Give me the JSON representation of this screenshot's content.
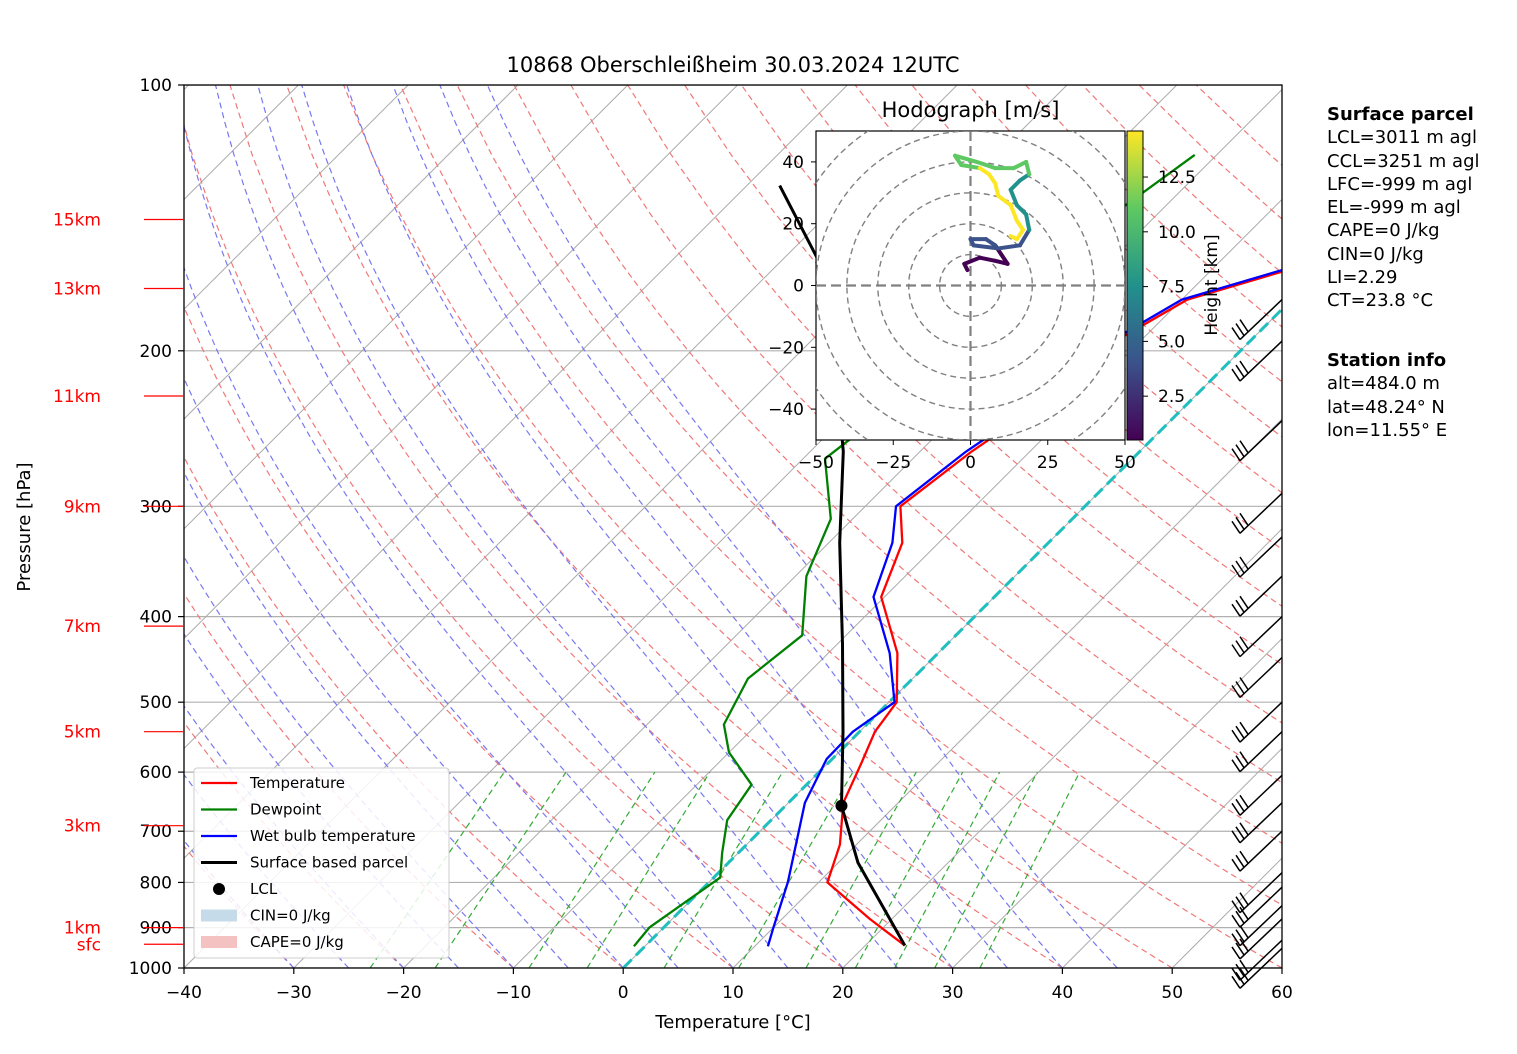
{
  "title": "10868 Oberschleißheim 30.03.2024 12UTC",
  "chart_data": {
    "type": "line",
    "subtype": "skew-T log-p diagram with hodograph inset",
    "xlabel": "Temperature [°C]",
    "ylabel": "Pressure [hPa]",
    "xlim": [
      -40,
      60
    ],
    "ylim": [
      1000,
      100
    ],
    "y_scale": "log",
    "grid": true,
    "x_ticks": [
      -40,
      -30,
      -20,
      -10,
      0,
      10,
      20,
      30,
      40,
      50,
      60
    ],
    "y_ticks": [
      100,
      200,
      300,
      400,
      500,
      600,
      700,
      800,
      900,
      1000
    ],
    "height_labels": [
      {
        "label": "sfc",
        "p": 940
      },
      {
        "label": "1km",
        "p": 900
      },
      {
        "label": "3km",
        "p": 690
      },
      {
        "label": "5km",
        "p": 540
      },
      {
        "label": "7km",
        "p": 410
      },
      {
        "label": "9km",
        "p": 300
      },
      {
        "label": "11km",
        "p": 225
      },
      {
        "label": "13km",
        "p": 170
      },
      {
        "label": "15km",
        "p": 142
      }
    ],
    "series": [
      {
        "name": "Temperature",
        "color": "#ff0000",
        "points": [
          [
            23.6,
            943
          ],
          [
            18,
            880
          ],
          [
            10.8,
            800
          ],
          [
            8.5,
            725
          ],
          [
            5,
            650
          ],
          [
            3,
            585
          ],
          [
            1.4,
            540
          ],
          [
            0.7,
            500
          ],
          [
            -3.7,
            440
          ],
          [
            -10.3,
            380
          ],
          [
            -13.3,
            330
          ],
          [
            -16.8,
            300
          ],
          [
            -15.3,
            260
          ],
          [
            -13,
            225
          ],
          [
            -13.3,
            203
          ],
          [
            -9.5,
            175
          ],
          [
            -2,
            160
          ],
          [
            1,
            152
          ],
          [
            5,
            148
          ],
          [
            4,
            138
          ],
          [
            3.5,
            132
          ],
          [
            -0.5,
            125
          ],
          [
            -5.5,
            118
          ]
        ]
      },
      {
        "name": "Dewpoint",
        "color": "#008000",
        "points": [
          [
            -1,
            945
          ],
          [
            -1.3,
            900
          ],
          [
            -0.3,
            840
          ],
          [
            0.6,
            790
          ],
          [
            -1.5,
            740
          ],
          [
            -4,
            680
          ],
          [
            -5,
            620
          ],
          [
            -10,
            570
          ],
          [
            -13,
            530
          ],
          [
            -15,
            470
          ],
          [
            -14,
            420
          ],
          [
            -19,
            360
          ],
          [
            -22,
            310
          ],
          [
            -28,
            265
          ],
          [
            -27,
            240
          ],
          [
            -25,
            220
          ],
          [
            -29,
            190
          ],
          [
            -30,
            170
          ],
          [
            -26,
            160
          ],
          [
            -24,
            140
          ],
          [
            -22,
            120
          ]
        ]
      },
      {
        "name": "Wet bulb temperature",
        "color": "#0000ff",
        "points": [
          [
            11.2,
            945
          ],
          [
            10,
            900
          ],
          [
            7.2,
            800
          ],
          [
            4.5,
            725
          ],
          [
            1.5,
            650
          ],
          [
            -0.5,
            580
          ],
          [
            -0.6,
            540
          ],
          [
            0.5,
            500
          ],
          [
            -4.4,
            440
          ],
          [
            -11,
            380
          ],
          [
            -14.2,
            330
          ],
          [
            -17.2,
            300
          ],
          [
            -15.8,
            260
          ],
          [
            -13.4,
            225
          ],
          [
            -13.7,
            203
          ],
          [
            -10,
            175
          ],
          [
            -2.5,
            160
          ],
          [
            0.5,
            152
          ],
          [
            4.6,
            148
          ],
          [
            4,
            138
          ],
          [
            3,
            132
          ],
          [
            -1,
            125
          ],
          [
            -5.5,
            118
          ]
        ]
      },
      {
        "name": "Surface based parcel",
        "color": "#000000",
        "points": [
          [
            23.6,
            943
          ],
          [
            11.8,
            760
          ],
          [
            5.1,
            655
          ],
          [
            -1.5,
            540
          ],
          [
            -9.5,
            430
          ],
          [
            -19,
            330
          ],
          [
            -27,
            260
          ],
          [
            -37,
            200
          ],
          [
            -46,
            160
          ],
          [
            -57,
            130
          ]
        ]
      }
    ],
    "lcl_point": {
      "name": "LCL",
      "t": 5.1,
      "p": 655
    },
    "cin_label": "CIN=0 J/kg",
    "cape_label": "CAPE=0 J/kg",
    "freezing_line": {
      "t": 0
    },
    "hodograph": {
      "title": "Hodograph [m/s]",
      "xlim": [
        -50,
        50
      ],
      "ylim": [
        -50,
        50
      ],
      "ticks": [
        -50,
        -25,
        0,
        25,
        50
      ],
      "ytick_labels": [
        40,
        20,
        0,
        -20,
        -40
      ],
      "colorbar_label": "Height [km]",
      "colorbar_ticks": [
        "2.5",
        "5.0",
        "7.5",
        "10.0",
        "12.5"
      ],
      "points": [
        [
          -1,
          5
        ],
        [
          -2,
          7
        ],
        [
          3,
          9
        ],
        [
          8,
          8
        ],
        [
          12,
          7
        ],
        [
          10,
          10
        ],
        [
          8,
          13
        ],
        [
          5,
          15
        ],
        [
          0,
          15
        ],
        [
          1,
          13
        ],
        [
          9,
          12
        ],
        [
          16,
          13
        ],
        [
          19,
          18
        ],
        [
          18,
          23
        ],
        [
          15,
          26
        ],
        [
          13,
          31
        ],
        [
          16,
          34
        ],
        [
          19,
          36
        ],
        [
          18,
          40
        ],
        [
          14,
          38
        ],
        [
          8,
          38
        ],
        [
          2,
          40
        ],
        [
          -5,
          42
        ],
        [
          -3,
          39
        ],
        [
          3,
          38
        ],
        [
          6,
          36
        ],
        [
          8,
          33
        ],
        [
          9,
          29
        ],
        [
          13,
          26
        ],
        [
          15,
          21
        ],
        [
          17,
          18
        ],
        [
          15,
          15
        ],
        [
          13,
          16
        ]
      ],
      "heights_km": [
        0.5,
        1,
        1.5,
        2,
        2.5,
        3,
        3.5,
        4,
        4.5,
        5,
        5.5,
        6,
        6.5,
        7,
        7.5,
        8,
        8.5,
        9,
        9.5,
        10,
        10.5,
        11,
        11.5,
        11.8,
        12,
        12.3,
        12.6,
        12.9,
        13.2,
        13.6,
        14,
        14.3,
        14.6
      ]
    },
    "wind_barbs_present": true
  },
  "legend": {
    "items": [
      "Temperature",
      "Dewpoint",
      "Wet bulb temperature",
      "Surface based parcel",
      "LCL",
      "CIN=0 J/kg",
      "CAPE=0 J/kg"
    ]
  },
  "surface_parcel": {
    "heading": "Surface parcel",
    "lines": [
      "LCL=3011 m agl",
      "CCL=3251 m agl",
      "LFC=-999 m agl",
      "EL=-999 m agl",
      "CAPE=0 J/kg",
      "CIN=0 J/kg",
      "LI=2.29",
      "CT=23.8 °C"
    ]
  },
  "station_info": {
    "heading": "Station info",
    "lines": [
      "alt=484.0 m",
      "lat=48.24° N",
      "lon=11.55° E"
    ]
  }
}
